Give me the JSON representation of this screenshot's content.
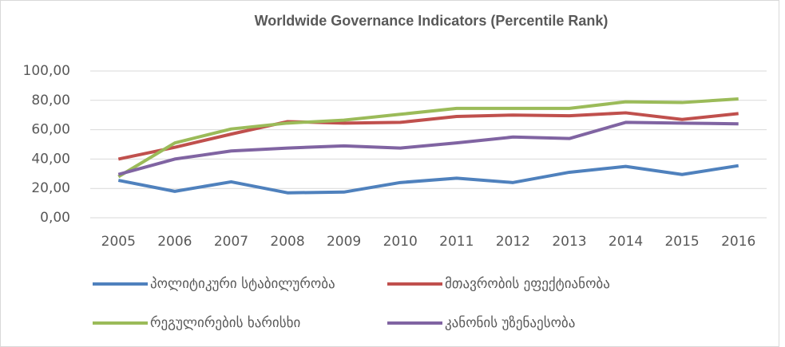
{
  "chart_data": {
    "type": "line",
    "title": "Worldwide Governance Indicators (Percentile Rank)",
    "categories": [
      "2005",
      "2006",
      "2007",
      "2008",
      "2009",
      "2010",
      "2011",
      "2012",
      "2013",
      "2014",
      "2015",
      "2016"
    ],
    "series": [
      {
        "name": "პოლიტიკური სტაბილურობა",
        "color": "#4f81bd",
        "values": [
          25.5,
          18,
          24.5,
          17,
          17.5,
          24,
          27,
          24,
          31,
          35,
          29.5,
          35.5
        ]
      },
      {
        "name": "მთავრობის ეფექტიანობა",
        "color": "#c0504d",
        "values": [
          40,
          48,
          57,
          65.5,
          64.5,
          65,
          69,
          70,
          69.5,
          71.5,
          67,
          71
        ]
      },
      {
        "name": "რეგულირების ხარისხი",
        "color": "#9bbb59",
        "values": [
          28,
          51,
          60.5,
          64.5,
          66.5,
          70.5,
          74.5,
          74.5,
          74.5,
          79,
          78.5,
          81
        ]
      },
      {
        "name": "კანონის უზენაესობა",
        "color": "#8064a2",
        "values": [
          29.5,
          40,
          45.5,
          47.5,
          49,
          47.5,
          51,
          55,
          54,
          65,
          64.5,
          64
        ]
      }
    ],
    "ylim": [
      0,
      100
    ],
    "yticks": [
      {
        "value": 0,
        "label": "0,00"
      },
      {
        "value": 20,
        "label": "20,00"
      },
      {
        "value": 40,
        "label": "40,00"
      },
      {
        "value": 60,
        "label": "60,00"
      },
      {
        "value": 80,
        "label": "80,00"
      },
      {
        "value": 100,
        "label": "100,00"
      }
    ],
    "grid": true,
    "legend": "bottom"
  }
}
